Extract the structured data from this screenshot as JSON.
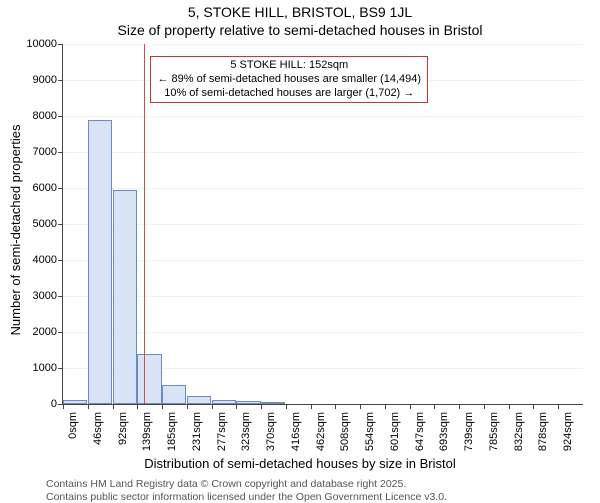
{
  "title_line1": "5, STOKE HILL, BRISTOL, BS9 1JL",
  "title_line2": "Size of property relative to semi-detached houses in Bristol",
  "ylabel": "Number of semi-detached properties",
  "xlabel": "Distribution of semi-detached houses by size in Bristol",
  "footer_line1": "Contains HM Land Registry data © Crown copyright and database right 2025.",
  "footer_line2": "Contains public sector information licensed under the Open Government Licence v3.0.",
  "chart": {
    "type": "histogram",
    "background_color": "#ffffff",
    "grid_color": "#eef1f6",
    "axis_color": "#444444",
    "bar_fill": "#d8e3f5",
    "bar_border": "#6d8ac4",
    "marker_color": "#d34b4b",
    "annot_border": "#c0392b",
    "ylim": [
      0,
      10000
    ],
    "ytick_step": 1000,
    "bins": [
      {
        "label": "0sqm",
        "x": 0,
        "value": 120
      },
      {
        "label": "46sqm",
        "x": 46,
        "value": 7880
      },
      {
        "label": "92sqm",
        "x": 92,
        "value": 5950
      },
      {
        "label": "139sqm",
        "x": 139,
        "value": 1400
      },
      {
        "label": "185sqm",
        "x": 185,
        "value": 530
      },
      {
        "label": "231sqm",
        "x": 231,
        "value": 230
      },
      {
        "label": "277sqm",
        "x": 277,
        "value": 120
      },
      {
        "label": "323sqm",
        "x": 323,
        "value": 70
      },
      {
        "label": "370sqm",
        "x": 370,
        "value": 40
      },
      {
        "label": "416sqm",
        "x": 416,
        "value": 0
      },
      {
        "label": "462sqm",
        "x": 462,
        "value": 0
      },
      {
        "label": "508sqm",
        "x": 508,
        "value": 0
      },
      {
        "label": "554sqm",
        "x": 554,
        "value": 0
      },
      {
        "label": "601sqm",
        "x": 601,
        "value": 0
      },
      {
        "label": "647sqm",
        "x": 647,
        "value": 0
      },
      {
        "label": "693sqm",
        "x": 693,
        "value": 0
      },
      {
        "label": "739sqm",
        "x": 739,
        "value": 0
      },
      {
        "label": "785sqm",
        "x": 785,
        "value": 0
      },
      {
        "label": "832sqm",
        "x": 832,
        "value": 0
      },
      {
        "label": "878sqm",
        "x": 878,
        "value": 0
      },
      {
        "label": "924sqm",
        "x": 924,
        "value": 0
      }
    ],
    "x_domain_max": 970,
    "marker_x": 152,
    "annotation": {
      "line1": "5 STOKE HILL: 152sqm",
      "line2": "← 89% of semi-detached houses are smaller (14,494)",
      "line3": "10% of semi-detached houses are larger (1,702) →"
    },
    "title_fontsize": 14,
    "label_fontsize": 13,
    "tick_fontsize": 11,
    "annot_fontsize": 11,
    "footer_fontsize": 10.5
  }
}
